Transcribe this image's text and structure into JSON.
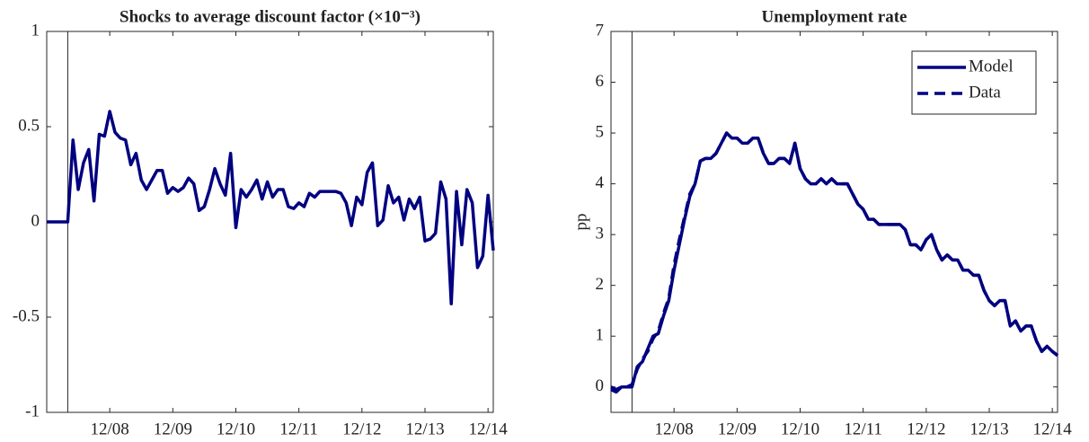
{
  "chart_data": [
    {
      "type": "line",
      "title": "Shocks to average discount factor (×10⁻³)",
      "categories": [
        null,
        null,
        null,
        null,
        null,
        null,
        null,
        null,
        null,
        null,
        null,
        null,
        "12/08",
        null,
        null,
        null,
        null,
        null,
        null,
        null,
        null,
        null,
        null,
        null,
        "12/09",
        null,
        null,
        null,
        null,
        null,
        null,
        null,
        null,
        null,
        null,
        null,
        "12/10",
        null,
        null,
        null,
        null,
        null,
        null,
        null,
        null,
        null,
        null,
        null,
        "12/11",
        null,
        null,
        null,
        null,
        null,
        null,
        null,
        null,
        null,
        null,
        null,
        "12/12",
        null,
        null,
        null,
        null,
        null,
        null,
        null,
        null,
        null,
        null,
        null,
        "12/13",
        null,
        null,
        null,
        null,
        null,
        null,
        null,
        null,
        null,
        null,
        null,
        "12/14",
        null
      ],
      "series": [
        {
          "color": "#000080",
          "values": [
            0,
            0,
            0,
            0,
            0,
            0.43,
            0.17,
            0.31,
            0.38,
            0.11,
            0.46,
            0.45,
            0.58,
            0.47,
            0.44,
            0.43,
            0.3,
            0.36,
            0.22,
            0.17,
            0.22,
            0.27,
            0.27,
            0.15,
            0.18,
            0.16,
            0.18,
            0.23,
            0.2,
            0.06,
            0.08,
            0.17,
            0.28,
            0.2,
            0.14,
            0.36,
            -0.03,
            0.17,
            0.13,
            0.17,
            0.22,
            0.12,
            0.21,
            0.13,
            0.17,
            0.17,
            0.08,
            0.07,
            0.1,
            0.08,
            0.15,
            0.13,
            0.16,
            0.16,
            0.16,
            0.16,
            0.15,
            0.1,
            -0.02,
            0.13,
            0.09,
            0.26,
            0.31,
            -0.02,
            0.01,
            0.19,
            0.1,
            0.13,
            0.01,
            0.12,
            0.07,
            0.13,
            -0.1,
            -0.09,
            -0.06,
            0.21,
            0.12,
            -0.43,
            0.16,
            -0.12,
            0.17,
            0.1,
            -0.24,
            -0.18,
            0.14,
            -0.15
          ]
        }
      ],
      "ylim": [
        -1,
        1
      ],
      "yticks": [
        -1,
        -0.5,
        0,
        0.5,
        1
      ],
      "vline": 4,
      "grid": false
    },
    {
      "type": "line",
      "title": "Unemployment rate",
      "ylabel": "pp",
      "categories": [
        null,
        null,
        null,
        null,
        null,
        null,
        null,
        null,
        null,
        null,
        null,
        null,
        "12/08",
        null,
        null,
        null,
        null,
        null,
        null,
        null,
        null,
        null,
        null,
        null,
        "12/09",
        null,
        null,
        null,
        null,
        null,
        null,
        null,
        null,
        null,
        null,
        null,
        "12/10",
        null,
        null,
        null,
        null,
        null,
        null,
        null,
        null,
        null,
        null,
        null,
        "12/11",
        null,
        null,
        null,
        null,
        null,
        null,
        null,
        null,
        null,
        null,
        null,
        "12/12",
        null,
        null,
        null,
        null,
        null,
        null,
        null,
        null,
        null,
        null,
        null,
        "12/13",
        null,
        null,
        null,
        null,
        null,
        null,
        null,
        null,
        null,
        null,
        null,
        "12/14",
        null
      ],
      "series": [
        {
          "name": "Model",
          "color": "#000080",
          "dash": false,
          "values": [
            -0.05,
            -0.1,
            0,
            0,
            0,
            0.4,
            0.5,
            0.75,
            1.0,
            1.05,
            1.4,
            1.7,
            2.3,
            2.8,
            3.3,
            3.75,
            4.0,
            4.45,
            4.5,
            4.5,
            4.6,
            4.8,
            5.0,
            4.9,
            4.9,
            4.8,
            4.8,
            4.9,
            4.9,
            4.6,
            4.4,
            4.4,
            4.5,
            4.5,
            4.4,
            4.8,
            4.3,
            4.1,
            4.0,
            4.0,
            4.1,
            4.0,
            4.1,
            4.0,
            4.0,
            4.0,
            3.8,
            3.6,
            3.5,
            3.3,
            3.3,
            3.2,
            3.2,
            3.2,
            3.2,
            3.2,
            3.1,
            2.8,
            2.8,
            2.7,
            2.9,
            3.0,
            2.7,
            2.5,
            2.6,
            2.5,
            2.5,
            2.3,
            2.3,
            2.2,
            2.2,
            1.9,
            1.7,
            1.6,
            1.7,
            1.7,
            1.2,
            1.3,
            1.1,
            1.2,
            1.2,
            0.9,
            0.7,
            0.8,
            0.7,
            0.62
          ]
        },
        {
          "name": "Data",
          "color": "#000080",
          "dash": true,
          "values": [
            0,
            -0.05,
            0,
            0,
            0.05,
            0.35,
            0.55,
            0.7,
            0.95,
            1.1,
            1.45,
            1.75,
            2.4,
            2.9,
            3.35,
            3.8,
            4.0,
            4.45,
            4.5,
            4.5,
            4.6,
            4.8,
            5.0,
            4.9,
            4.9,
            4.8,
            4.8,
            4.9,
            4.9,
            4.6,
            4.4,
            4.4,
            4.5,
            4.5,
            4.4,
            4.8,
            4.3,
            4.1,
            4.0,
            4.0,
            4.1,
            4.0,
            4.1,
            4.0,
            4.0,
            4.0,
            3.8,
            3.6,
            3.5,
            3.3,
            3.3,
            3.2,
            3.2,
            3.2,
            3.2,
            3.2,
            3.1,
            2.8,
            2.8,
            2.7,
            2.9,
            3.0,
            2.7,
            2.5,
            2.6,
            2.5,
            2.5,
            2.3,
            2.3,
            2.2,
            2.2,
            1.9,
            1.7,
            1.6,
            1.7,
            1.7,
            1.2,
            1.3,
            1.1,
            1.2,
            1.2,
            0.9,
            0.7,
            0.8,
            0.7,
            0.62
          ]
        }
      ],
      "ylim": [
        -0.5,
        7
      ],
      "yticks": [
        0,
        1,
        2,
        3,
        4,
        5,
        6,
        7
      ],
      "vline": 4,
      "legend": "top-right",
      "grid": false
    }
  ]
}
